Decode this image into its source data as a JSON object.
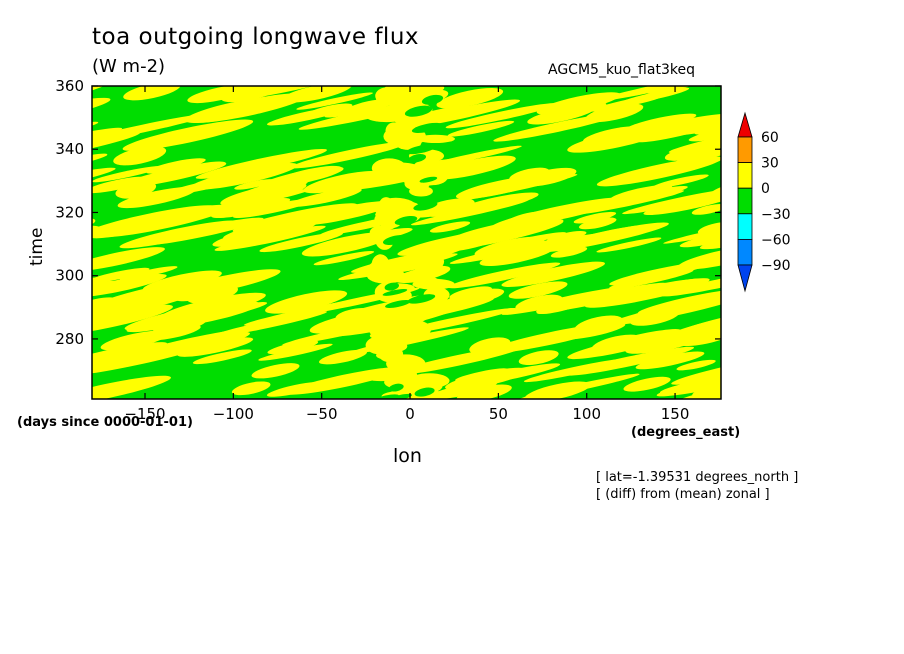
{
  "chart_data": {
    "type": "heatmap",
    "title": "toa outgoing longwave flux",
    "units": "(W m-2)",
    "model_label": "AGCM5_kuo_flat3keq",
    "xlabel": "lon",
    "x_units_label": "(degrees_east)",
    "ylabel": "time",
    "time_units_label": "(days since 0000-01-01)",
    "xlim": [
      -180,
      176
    ],
    "ylim": [
      261,
      360
    ],
    "x_ticks": [
      -150,
      -100,
      -50,
      0,
      50,
      100,
      150
    ],
    "y_ticks": [
      280,
      300,
      320,
      340,
      360
    ],
    "colorbar": {
      "levels": [
        60,
        30,
        0,
        -30,
        -60,
        -90
      ],
      "colors": {
        "above_60": "#ee0000",
        "30_to_60": "#ff9a00",
        "0_to_30": "#ffff00",
        "-30_to_0": "#00dd00",
        "-60_to_-30": "#00ffff",
        "-90_to_-60": "#0088ff",
        "below_-90": "#0044ee"
      }
    },
    "dominant_ranges": [
      "0_to_30",
      "-30_to_0"
    ],
    "notes": [
      "[ lat=-1.39531 degrees_north ]",
      "[ (diff) from (mean) zonal ]"
    ]
  }
}
